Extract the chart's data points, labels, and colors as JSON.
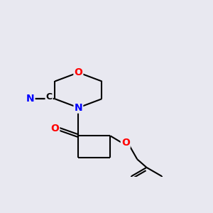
{
  "background_color": "#e8e8f0",
  "bond_color": "#000000",
  "atom_colors": {
    "N": "#0000ff",
    "O": "#ff0000",
    "C": "#000000"
  },
  "bond_width": 1.5,
  "font_size": 10,
  "figsize": [
    3.0,
    3.0
  ],
  "dpi": 100
}
